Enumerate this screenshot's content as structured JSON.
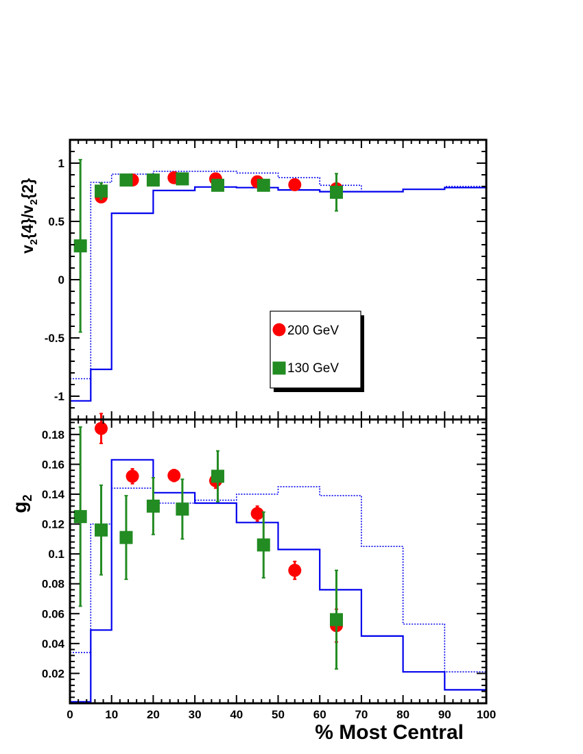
{
  "chart_data": [
    {
      "type": "scatter",
      "title": "",
      "xlabel": "% Most Central",
      "ylabel": "v{4}/v{2}",
      "ylabel_parts": {
        "v1": "v",
        "sub1": "2",
        "mid": "{4}/",
        "v2": "v",
        "sub2": "2",
        "end": "{2}"
      },
      "xlim": [
        0,
        100
      ],
      "ylim": [
        -1.2,
        1.2
      ],
      "yticks": [
        -1,
        -0.5,
        0,
        0.5,
        1
      ],
      "ytick_labels": [
        "-1",
        "-0.5",
        "0",
        "0.5",
        "1"
      ],
      "grid": false,
      "legend": {
        "placement": "center-right",
        "entries": [
          "200 GeV",
          "130 GeV"
        ]
      },
      "series": [
        {
          "name": "200 GeV",
          "marker": "circle",
          "color": "#ff0000",
          "x": [
            7.5,
            15,
            25,
            35,
            45,
            54,
            64
          ],
          "y": [
            0.71,
            0.855,
            0.875,
            0.865,
            0.84,
            0.815,
            0.78
          ],
          "err": [
            0.02,
            0.015,
            0.015,
            0.015,
            0.015,
            0.015,
            0.03
          ]
        },
        {
          "name": "130 GeV",
          "marker": "square",
          "color": "#228b22",
          "x": [
            2.5,
            7.5,
            13.5,
            20,
            27,
            35.5,
            46.5,
            64
          ],
          "y": [
            0.29,
            0.76,
            0.855,
            0.855,
            0.865,
            0.81,
            0.81,
            0.75
          ],
          "err": [
            0.74,
            0.07,
            0.03,
            0.03,
            0.03,
            0.04,
            0.04,
            0.16
          ]
        }
      ],
      "curves": [
        {
          "style": "solid",
          "color": "#0000ee",
          "edges": [
            0,
            5,
            10,
            20,
            30,
            40,
            50,
            60,
            70,
            80,
            90,
            100
          ],
          "values": [
            -1.04,
            -0.77,
            0.57,
            0.765,
            0.795,
            0.79,
            0.77,
            0.755,
            0.755,
            0.775,
            0.79
          ]
        },
        {
          "style": "dotted",
          "color": "#0000ee",
          "edges": [
            0,
            5,
            10,
            20,
            30,
            40,
            50,
            60,
            70,
            80,
            90,
            100
          ],
          "values": [
            -0.85,
            0.835,
            0.905,
            0.93,
            0.93,
            0.915,
            0.875,
            0.81,
            0.755,
            0.775,
            0.8
          ]
        }
      ]
    },
    {
      "type": "scatter",
      "title": "",
      "xlabel": "% Most Central",
      "ylabel": "g",
      "ylabel_parts": {
        "main": "g",
        "sub": "2"
      },
      "xlim": [
        0,
        100
      ],
      "ylim": [
        0,
        0.19
      ],
      "xticks": [
        0,
        10,
        20,
        30,
        40,
        50,
        60,
        70,
        80,
        90,
        100
      ],
      "xtick_labels": [
        "0",
        "10",
        "20",
        "30",
        "40",
        "50",
        "60",
        "70",
        "80",
        "90",
        "100"
      ],
      "yticks": [
        0.02,
        0.04,
        0.06,
        0.08,
        0.1,
        0.12,
        0.14,
        0.16,
        0.18
      ],
      "ytick_labels": [
        "0.02",
        "0.04",
        "0.06",
        "0.08",
        "0.1",
        "0.12",
        "0.14",
        "0.16",
        "0.18"
      ],
      "grid": false,
      "series": [
        {
          "name": "200 GeV",
          "marker": "circle",
          "color": "#ff0000",
          "x": [
            7.5,
            15,
            25,
            35,
            45,
            54,
            64
          ],
          "y": [
            0.184,
            0.152,
            0.1525,
            0.149,
            0.127,
            0.089,
            0.052
          ],
          "err": [
            0.01,
            0.005,
            0.004,
            0.005,
            0.005,
            0.006,
            0.011
          ]
        },
        {
          "name": "130 GeV",
          "marker": "square",
          "color": "#228b22",
          "x": [
            2.5,
            7.5,
            13.5,
            20,
            27,
            35.5,
            46.5,
            64
          ],
          "y": [
            0.125,
            0.116,
            0.111,
            0.132,
            0.13,
            0.152,
            0.106,
            0.056
          ],
          "err": [
            0.06,
            0.03,
            0.028,
            0.019,
            0.02,
            0.017,
            0.022,
            0.033
          ]
        }
      ],
      "curves": [
        {
          "style": "solid",
          "color": "#0000ee",
          "edges": [
            0,
            5,
            10,
            20,
            30,
            40,
            50,
            60,
            70,
            80,
            90,
            100
          ],
          "values": [
            0.001,
            0.049,
            0.163,
            0.141,
            0.134,
            0.121,
            0.103,
            0.076,
            0.045,
            0.021,
            0.009
          ]
        },
        {
          "style": "dotted",
          "color": "#0000ee",
          "edges": [
            0,
            5,
            10,
            20,
            30,
            40,
            50,
            60,
            70,
            80,
            90,
            100
          ],
          "values": [
            0.034,
            0.12,
            0.144,
            0.134,
            0.136,
            0.14,
            0.145,
            0.139,
            0.105,
            0.053,
            0.021
          ]
        }
      ]
    }
  ]
}
